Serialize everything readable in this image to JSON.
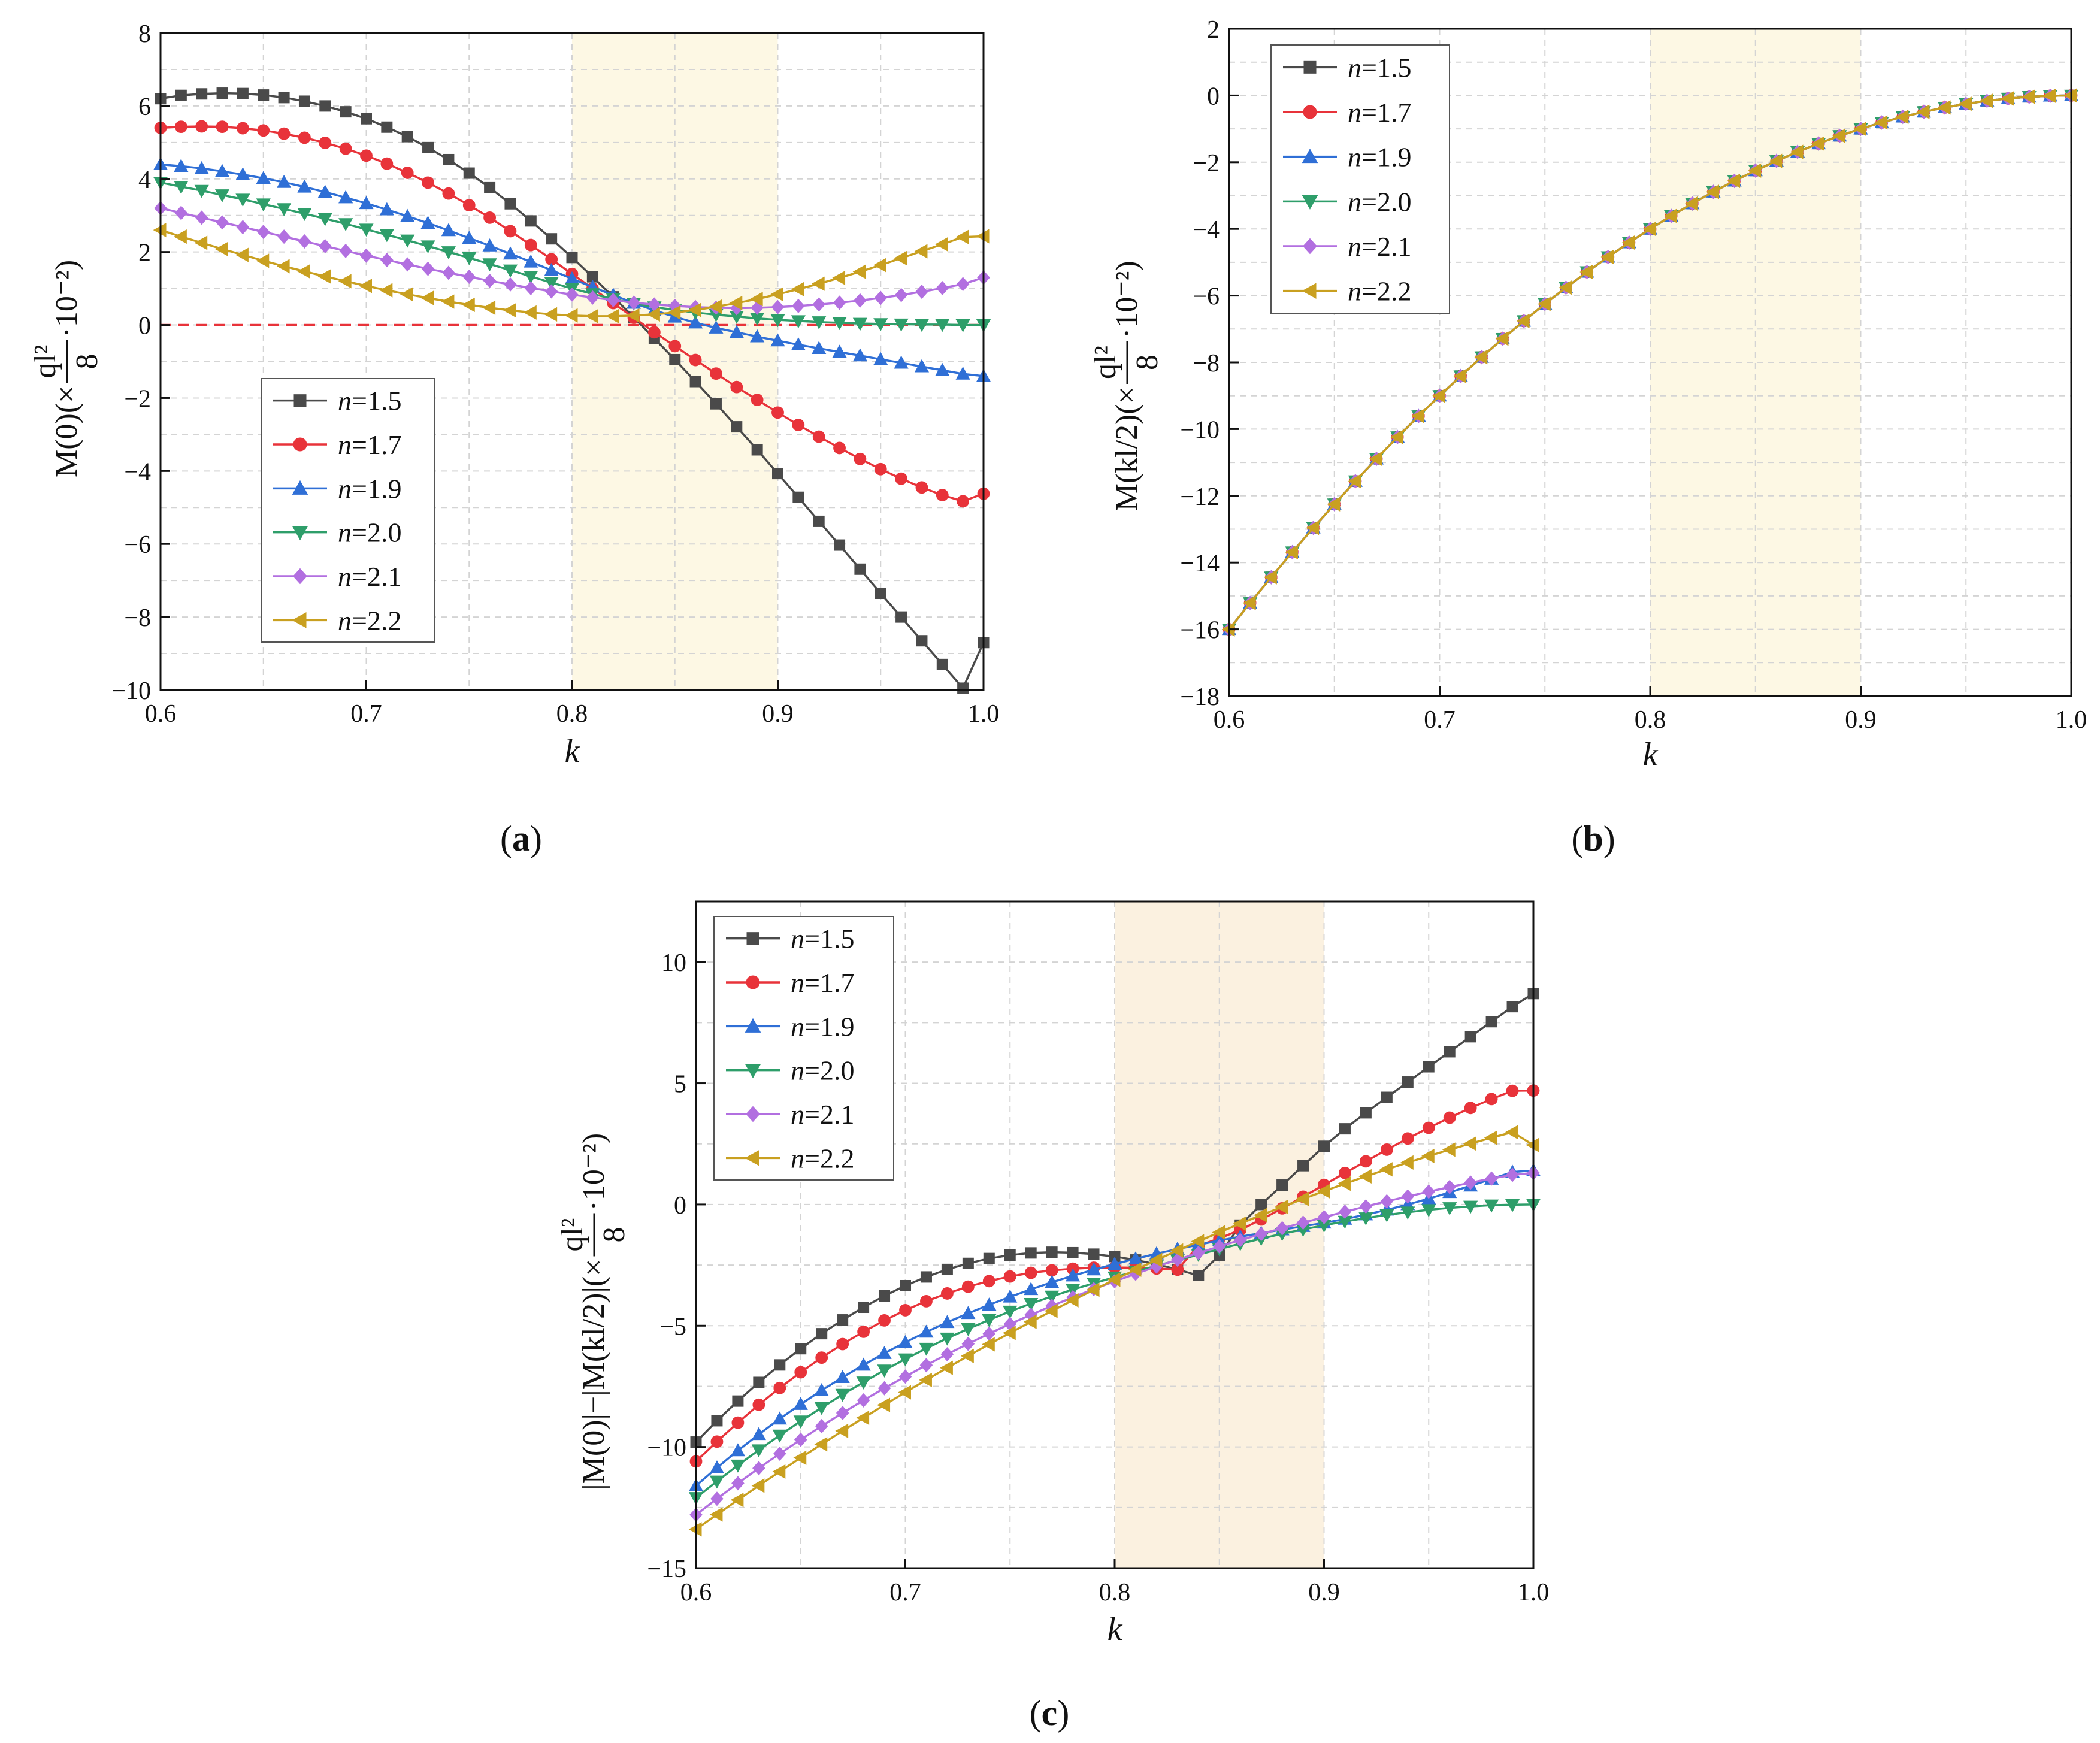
{
  "chart_data": [
    {
      "id": "a",
      "type": "line",
      "caption_open": "(",
      "caption_letter": "a",
      "caption_close": ")",
      "xlabel": "k",
      "ylabel_prefix": "M(0)(×",
      "ylabel_frac_num": "ql²",
      "ylabel_frac_den": "8",
      "ylabel_suffix": "·10⁻²)",
      "xlim": [
        0.6,
        1.0
      ],
      "ylim": [
        -10,
        8
      ],
      "xticks": [
        0.6,
        0.7,
        0.8,
        0.9,
        1.0
      ],
      "xtick_labels": [
        "0.6",
        "0.7",
        "0.8",
        "0.9",
        "1.0"
      ],
      "yticks": [
        -10,
        -8,
        -6,
        -4,
        -2,
        0,
        2,
        4,
        6,
        8
      ],
      "ytick_labels": [
        "−10",
        "−8",
        "−6",
        "−4",
        "−2",
        "0",
        "2",
        "4",
        "6",
        "8"
      ],
      "grid": true,
      "highlight_band": [
        0.8,
        0.9
      ],
      "band_color": "#fdf8e4",
      "reference_line": 0,
      "reference_color": "#e8333a",
      "legend_position": "lower-left",
      "x_start": 0.6,
      "x_step": 0.01,
      "x_count": 41,
      "series": [
        {
          "name": "n=1.5",
          "name_var": "n",
          "name_val": "=1.5",
          "color": "#4a4a4a",
          "marker": "square",
          "values": [
            6.2,
            6.29,
            6.33,
            6.35,
            6.34,
            6.3,
            6.23,
            6.13,
            6.0,
            5.84,
            5.65,
            5.42,
            5.16,
            4.86,
            4.53,
            4.16,
            3.76,
            3.32,
            2.85,
            2.36,
            1.85,
            1.32,
            0.77,
            0.21,
            -0.37,
            -0.95,
            -1.55,
            -2.16,
            -2.79,
            -3.42,
            -4.07,
            -4.72,
            -5.38,
            -6.03,
            -6.69,
            -7.35,
            -8.0,
            -8.65,
            -9.3,
            -9.95,
            -8.7
          ]
        },
        {
          "name": "n=1.7",
          "name_var": "n",
          "name_val": "=1.7",
          "color": "#e8333a",
          "marker": "circle",
          "values": [
            5.4,
            5.43,
            5.44,
            5.43,
            5.39,
            5.33,
            5.24,
            5.13,
            4.99,
            4.83,
            4.64,
            4.42,
            4.17,
            3.9,
            3.6,
            3.28,
            2.94,
            2.57,
            2.19,
            1.8,
            1.4,
            1.0,
            0.6,
            0.2,
            -0.2,
            -0.58,
            -0.96,
            -1.33,
            -1.7,
            -2.05,
            -2.4,
            -2.74,
            -3.06,
            -3.37,
            -3.67,
            -3.95,
            -4.21,
            -4.45,
            -4.66,
            -4.83,
            -4.62
          ]
        },
        {
          "name": "n=1.9",
          "name_var": "n",
          "name_val": "=1.9",
          "color": "#2f6fd6",
          "marker": "triangle-up",
          "values": [
            4.4,
            4.35,
            4.29,
            4.21,
            4.12,
            4.02,
            3.91,
            3.78,
            3.64,
            3.49,
            3.33,
            3.16,
            2.98,
            2.79,
            2.59,
            2.38,
            2.17,
            1.95,
            1.73,
            1.5,
            1.27,
            1.04,
            0.82,
            0.6,
            0.4,
            0.22,
            0.06,
            -0.08,
            -0.2,
            -0.32,
            -0.43,
            -0.54,
            -0.64,
            -0.74,
            -0.84,
            -0.94,
            -1.04,
            -1.14,
            -1.24,
            -1.34,
            -1.4
          ]
        },
        {
          "name": "n=2.0",
          "name_var": "n",
          "name_val": "=2.0",
          "color": "#2e9e6a",
          "marker": "triangle-down",
          "values": [
            3.9,
            3.79,
            3.68,
            3.56,
            3.44,
            3.31,
            3.18,
            3.05,
            2.91,
            2.77,
            2.62,
            2.47,
            2.32,
            2.16,
            2.0,
            1.84,
            1.67,
            1.5,
            1.33,
            1.16,
            1.0,
            0.85,
            0.71,
            0.59,
            0.49,
            0.41,
            0.34,
            0.28,
            0.23,
            0.18,
            0.14,
            0.11,
            0.08,
            0.06,
            0.04,
            0.03,
            0.02,
            0.01,
            0.01,
            0.0,
            0.0
          ]
        },
        {
          "name": "n=2.1",
          "name_var": "n",
          "name_val": "=2.1",
          "color": "#b26fe0",
          "marker": "diamond",
          "values": [
            3.2,
            3.07,
            2.94,
            2.81,
            2.68,
            2.55,
            2.42,
            2.29,
            2.16,
            2.03,
            1.9,
            1.78,
            1.66,
            1.54,
            1.43,
            1.32,
            1.21,
            1.11,
            1.01,
            0.92,
            0.83,
            0.75,
            0.68,
            0.61,
            0.56,
            0.52,
            0.49,
            0.47,
            0.46,
            0.47,
            0.49,
            0.52,
            0.56,
            0.61,
            0.67,
            0.74,
            0.82,
            0.91,
            1.01,
            1.12,
            1.3
          ]
        },
        {
          "name": "n=2.2",
          "name_var": "n",
          "name_val": "=2.2",
          "color": "#c9a020",
          "marker": "triangle-left",
          "values": [
            2.6,
            2.42,
            2.25,
            2.08,
            1.92,
            1.76,
            1.61,
            1.47,
            1.33,
            1.2,
            1.07,
            0.95,
            0.84,
            0.74,
            0.64,
            0.55,
            0.47,
            0.4,
            0.34,
            0.29,
            0.26,
            0.24,
            0.24,
            0.26,
            0.29,
            0.34,
            0.41,
            0.5,
            0.6,
            0.71,
            0.84,
            0.98,
            1.13,
            1.29,
            1.46,
            1.64,
            1.83,
            2.02,
            2.21,
            2.41,
            2.43
          ]
        }
      ]
    },
    {
      "id": "b",
      "type": "line",
      "caption_open": "(",
      "caption_letter": "b",
      "caption_close": ")",
      "xlabel": "k",
      "ylabel_prefix": "M(kl/2)(×",
      "ylabel_frac_num": "ql²",
      "ylabel_frac_den": "8",
      "ylabel_suffix": "·10⁻²)",
      "xlim": [
        0.6,
        1.0
      ],
      "ylim": [
        -18,
        2
      ],
      "xticks": [
        0.6,
        0.7,
        0.8,
        0.9,
        1.0
      ],
      "xtick_labels": [
        "0.6",
        "0.7",
        "0.8",
        "0.9",
        "1.0"
      ],
      "yticks": [
        -18,
        -16,
        -14,
        -12,
        -10,
        -8,
        -6,
        -4,
        -2,
        0,
        2
      ],
      "ytick_labels": [
        "−18",
        "−16",
        "−14",
        "−12",
        "−10",
        "−8",
        "−6",
        "−4",
        "−2",
        "0",
        "2"
      ],
      "grid": true,
      "highlight_band": [
        0.8,
        0.9
      ],
      "band_color": "#fdf8e4",
      "legend_position": "top-left",
      "x_start": 0.6,
      "x_step": 0.01,
      "x_count": 41,
      "shared_values": [
        -16.0,
        -15.21,
        -14.44,
        -13.69,
        -12.96,
        -12.25,
        -11.56,
        -10.89,
        -10.24,
        -9.61,
        -9.0,
        -8.41,
        -7.84,
        -7.29,
        -6.76,
        -6.25,
        -5.76,
        -5.29,
        -4.84,
        -4.41,
        -4.0,
        -3.61,
        -3.24,
        -2.89,
        -2.56,
        -2.25,
        -1.96,
        -1.69,
        -1.44,
        -1.21,
        -1.0,
        -0.81,
        -0.64,
        -0.49,
        -0.36,
        -0.25,
        -0.16,
        -0.09,
        -0.04,
        -0.01,
        0.0
      ],
      "series": [
        {
          "name": "n=1.5",
          "name_var": "n",
          "name_val": "=1.5",
          "color": "#4a4a4a",
          "marker": "square"
        },
        {
          "name": "n=1.7",
          "name_var": "n",
          "name_val": "=1.7",
          "color": "#e8333a",
          "marker": "circle"
        },
        {
          "name": "n=1.9",
          "name_var": "n",
          "name_val": "=1.9",
          "color": "#2f6fd6",
          "marker": "triangle-up"
        },
        {
          "name": "n=2.0",
          "name_var": "n",
          "name_val": "=2.0",
          "color": "#2e9e6a",
          "marker": "triangle-down"
        },
        {
          "name": "n=2.1",
          "name_var": "n",
          "name_val": "=2.1",
          "color": "#b26fe0",
          "marker": "diamond"
        },
        {
          "name": "n=2.2",
          "name_var": "n",
          "name_val": "=2.2",
          "color": "#c9a020",
          "marker": "triangle-left"
        }
      ]
    },
    {
      "id": "c",
      "type": "line",
      "caption_open": "(",
      "caption_letter": "c",
      "caption_close": ")",
      "xlabel": "k",
      "ylabel_prefix": "|M(0)|−|M(kl/2)|(×",
      "ylabel_frac_num": "ql²",
      "ylabel_frac_den": "8",
      "ylabel_suffix": "·10⁻²)",
      "xlim": [
        0.6,
        1.0
      ],
      "ylim": [
        -15,
        12.5
      ],
      "xticks": [
        0.6,
        0.7,
        0.8,
        0.9,
        1.0
      ],
      "xtick_labels": [
        "0.6",
        "0.7",
        "0.8",
        "0.9",
        "1.0"
      ],
      "yticks": [
        -15,
        -10,
        -5,
        0,
        5,
        10
      ],
      "ytick_labels": [
        "−15",
        "−10",
        "−5",
        "0",
        "5",
        "10"
      ],
      "grid": true,
      "highlight_band": [
        0.8,
        0.9
      ],
      "band_color": "#fbf1e0",
      "legend_position": "top-left",
      "x_start": 0.6,
      "x_step": 0.01,
      "x_count": 41,
      "series": [
        {
          "name": "n=1.5",
          "name_var": "n",
          "name_val": "=1.5",
          "color": "#4a4a4a",
          "marker": "square",
          "values": [
            -9.8,
            -8.92,
            -8.11,
            -7.34,
            -6.62,
            -5.95,
            -5.33,
            -4.76,
            -4.24,
            -3.77,
            -3.35,
            -2.99,
            -2.68,
            -2.43,
            -2.23,
            -2.09,
            -2.0,
            -1.97,
            -1.99,
            -2.05,
            -2.15,
            -2.29,
            -2.47,
            -2.68,
            -2.93,
            -2.1,
            -0.85,
            0.0,
            0.8,
            1.6,
            2.4,
            3.12,
            3.78,
            4.42,
            5.05,
            5.68,
            6.3,
            6.92,
            7.54,
            8.16,
            8.7
          ]
        },
        {
          "name": "n=1.7",
          "name_var": "n",
          "name_val": "=1.7",
          "color": "#e8333a",
          "marker": "circle",
          "values": [
            -10.6,
            -9.78,
            -9.0,
            -8.26,
            -7.57,
            -6.92,
            -6.32,
            -5.76,
            -5.25,
            -4.78,
            -4.36,
            -3.99,
            -3.67,
            -3.39,
            -3.16,
            -2.97,
            -2.82,
            -2.72,
            -2.65,
            -2.61,
            -2.6,
            -2.61,
            -2.64,
            -2.69,
            -1.7,
            -1.4,
            -1.05,
            -0.62,
            -0.16,
            0.32,
            0.81,
            1.3,
            1.78,
            2.26,
            2.72,
            3.16,
            3.58,
            3.98,
            4.35,
            4.69,
            4.7
          ]
        },
        {
          "name": "n=1.9",
          "name_var": "n",
          "name_val": "=1.9",
          "color": "#2f6fd6",
          "marker": "triangle-up",
          "values": [
            -11.6,
            -10.86,
            -10.15,
            -9.48,
            -8.84,
            -8.24,
            -7.67,
            -7.13,
            -6.62,
            -6.14,
            -5.69,
            -5.26,
            -4.86,
            -4.49,
            -4.14,
            -3.81,
            -3.5,
            -3.21,
            -2.94,
            -2.69,
            -2.46,
            -2.24,
            -2.03,
            -1.84,
            -1.66,
            -1.49,
            -1.33,
            -1.18,
            -1.04,
            -0.9,
            -0.76,
            -0.6,
            -0.42,
            -0.22,
            0.0,
            0.24,
            0.5,
            0.77,
            1.05,
            1.34,
            1.4
          ]
        },
        {
          "name": "n=2.0",
          "name_var": "n",
          "name_val": "=2.0",
          "color": "#2e9e6a",
          "marker": "triangle-down",
          "values": [
            -12.1,
            -11.42,
            -10.76,
            -10.13,
            -9.52,
            -8.94,
            -8.38,
            -7.84,
            -7.33,
            -6.84,
            -6.38,
            -5.94,
            -5.52,
            -5.13,
            -4.76,
            -4.41,
            -4.09,
            -3.79,
            -3.51,
            -3.25,
            -3.0,
            -2.76,
            -2.53,
            -2.3,
            -2.07,
            -1.84,
            -1.62,
            -1.41,
            -1.21,
            -1.03,
            -0.86,
            -0.7,
            -0.56,
            -0.43,
            -0.32,
            -0.22,
            -0.14,
            -0.08,
            -0.03,
            -0.01,
            0.0
          ]
        },
        {
          "name": "n=2.1",
          "name_var": "n",
          "name_val": "=2.1",
          "color": "#b26fe0",
          "marker": "diamond",
          "values": [
            -12.8,
            -12.14,
            -11.5,
            -10.88,
            -10.28,
            -9.7,
            -9.14,
            -8.6,
            -8.08,
            -7.58,
            -7.1,
            -6.63,
            -6.18,
            -5.75,
            -5.33,
            -4.93,
            -4.55,
            -4.18,
            -3.83,
            -3.49,
            -3.17,
            -2.86,
            -2.56,
            -2.28,
            -2.0,
            -1.73,
            -1.47,
            -1.22,
            -0.98,
            -0.75,
            -0.52,
            -0.3,
            -0.08,
            0.13,
            0.33,
            0.53,
            0.72,
            0.9,
            1.07,
            1.22,
            1.3
          ]
        },
        {
          "name": "n=2.2",
          "name_var": "n",
          "name_val": "=2.2",
          "color": "#c9a020",
          "marker": "triangle-left",
          "values": [
            -13.4,
            -12.79,
            -12.19,
            -11.6,
            -11.02,
            -10.45,
            -9.89,
            -9.34,
            -8.8,
            -8.27,
            -7.75,
            -7.24,
            -6.74,
            -6.25,
            -5.77,
            -5.3,
            -4.84,
            -4.39,
            -3.95,
            -3.52,
            -3.1,
            -2.69,
            -2.29,
            -1.9,
            -1.52,
            -1.15,
            -0.79,
            -0.44,
            -0.1,
            0.23,
            0.55,
            0.86,
            1.16,
            1.45,
            1.73,
            2.0,
            2.26,
            2.51,
            2.75,
            2.98,
            2.45
          ]
        }
      ]
    }
  ]
}
